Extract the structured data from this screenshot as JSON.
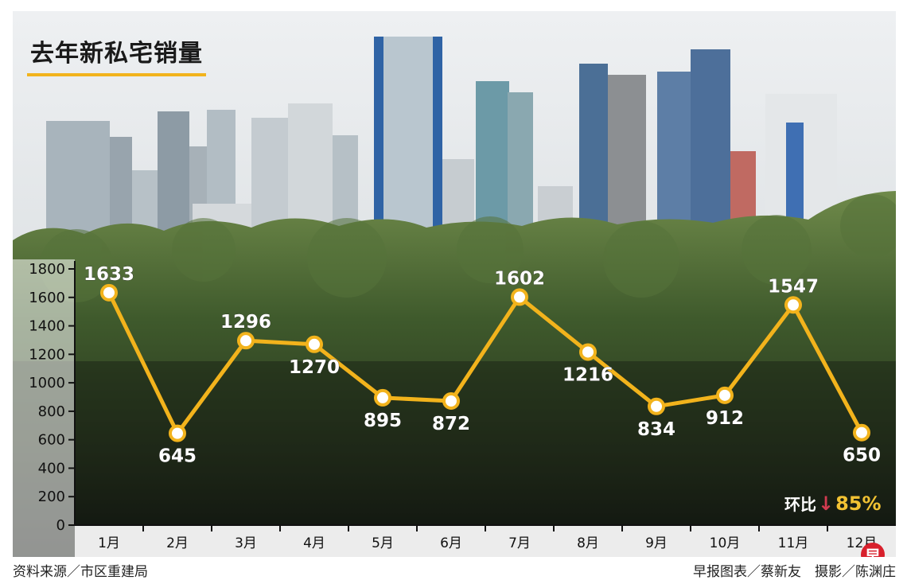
{
  "chart_data": {
    "type": "line",
    "title": "去年新私宅销量",
    "categories": [
      "1月",
      "2月",
      "3月",
      "4月",
      "5月",
      "6月",
      "7月",
      "8月",
      "9月",
      "10月",
      "11月",
      "12月"
    ],
    "values": [
      1633,
      645,
      1296,
      1270,
      895,
      872,
      1602,
      1216,
      834,
      912,
      1547,
      650
    ],
    "yticks": [
      0,
      200,
      400,
      600,
      800,
      1000,
      1200,
      1400,
      1600,
      1800
    ],
    "ylim": [
      0,
      1800
    ],
    "line_color": "#f2b31c",
    "grid": false,
    "annotation": {
      "label": "环比",
      "arrow": "↓",
      "value": "85%"
    }
  },
  "footer": {
    "source": "资料来源／市区重建局",
    "credit": "早报图表／蔡新友　摄影／陈渊庄"
  },
  "logo": "早"
}
